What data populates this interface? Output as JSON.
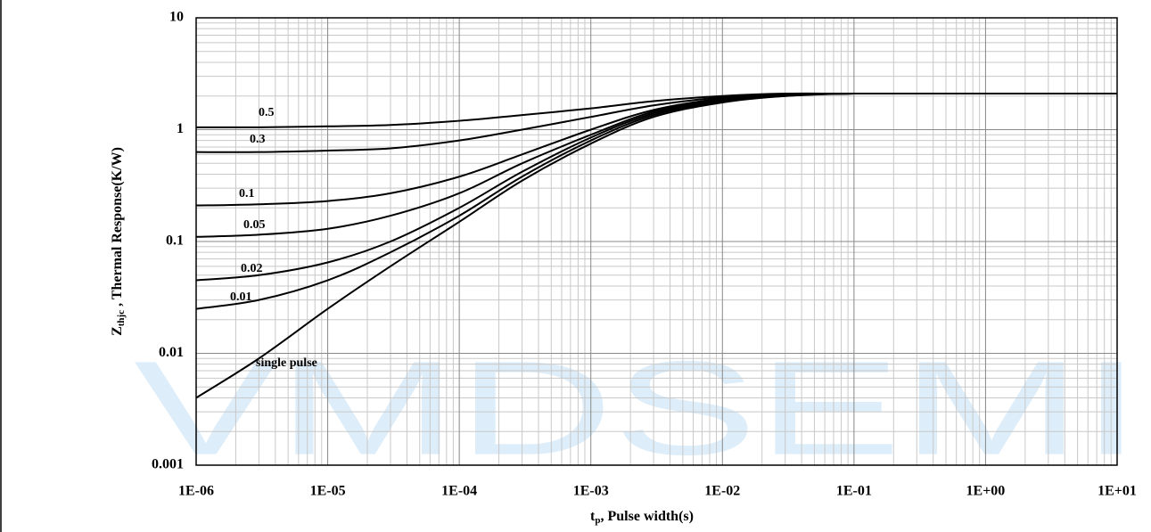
{
  "chart_data": {
    "type": "line",
    "watermark": "VMDSEMI",
    "xlabel": [
      "t",
      "p",
      ", Pulse width(s)"
    ],
    "ylabel": [
      "Z",
      "thjc",
      " , Thermal Response(K/W)"
    ],
    "x": [
      1e-06,
      3e-06,
      1e-05,
      3e-05,
      0.0001,
      0.0003,
      0.001,
      0.003,
      0.01,
      0.03,
      0.1,
      1,
      10
    ],
    "series": [
      {
        "name": "0.5",
        "color": "#000000",
        "values": [
          1.05,
          1.05,
          1.07,
          1.1,
          1.2,
          1.35,
          1.55,
          1.8,
          2.0,
          2.1,
          2.1,
          2.1,
          2.1
        ]
      },
      {
        "name": "0.3",
        "color": "#000000",
        "values": [
          0.63,
          0.63,
          0.65,
          0.68,
          0.8,
          1.0,
          1.3,
          1.65,
          1.95,
          2.08,
          2.1,
          2.1,
          2.1
        ]
      },
      {
        "name": "0.1",
        "color": "#000000",
        "values": [
          0.21,
          0.215,
          0.23,
          0.27,
          0.38,
          0.6,
          1.0,
          1.5,
          1.9,
          2.05,
          2.1,
          2.1,
          2.1
        ]
      },
      {
        "name": "0.05",
        "color": "#000000",
        "values": [
          0.11,
          0.115,
          0.13,
          0.17,
          0.27,
          0.5,
          0.9,
          1.45,
          1.88,
          2.05,
          2.1,
          2.1,
          2.1
        ]
      },
      {
        "name": "0.02",
        "color": "#000000",
        "values": [
          0.045,
          0.05,
          0.065,
          0.1,
          0.2,
          0.42,
          0.85,
          1.4,
          1.85,
          2.05,
          2.1,
          2.1,
          2.1
        ]
      },
      {
        "name": "0.01",
        "color": "#000000",
        "values": [
          0.025,
          0.03,
          0.045,
          0.08,
          0.17,
          0.38,
          0.8,
          1.35,
          1.8,
          2.0,
          2.1,
          2.1,
          2.1
        ]
      },
      {
        "name": "single pulse",
        "color": "#000000",
        "values": [
          0.004,
          0.009,
          0.025,
          0.06,
          0.15,
          0.35,
          0.75,
          1.3,
          1.75,
          2.0,
          2.1,
          2.1,
          2.1
        ]
      }
    ],
    "xlog": true,
    "ylog": true,
    "grid": true,
    "minor_grid": true,
    "xlim": [
      1e-06,
      10
    ],
    "xticks": [
      {
        "value": 1e-06,
        "label": "1E-06"
      },
      {
        "value": 1e-05,
        "label": "1E-05"
      },
      {
        "value": 0.0001,
        "label": "1E-04"
      },
      {
        "value": 0.001,
        "label": "1E-03"
      },
      {
        "value": 0.01,
        "label": "1E-02"
      },
      {
        "value": 0.1,
        "label": "1E-01"
      },
      {
        "value": 1,
        "label": "1E+00"
      },
      {
        "value": 10,
        "label": "1E+01"
      }
    ],
    "ylim": [
      0.001,
      10
    ],
    "yticks": [
      0.001,
      0.01,
      0.1,
      1,
      10
    ]
  }
}
